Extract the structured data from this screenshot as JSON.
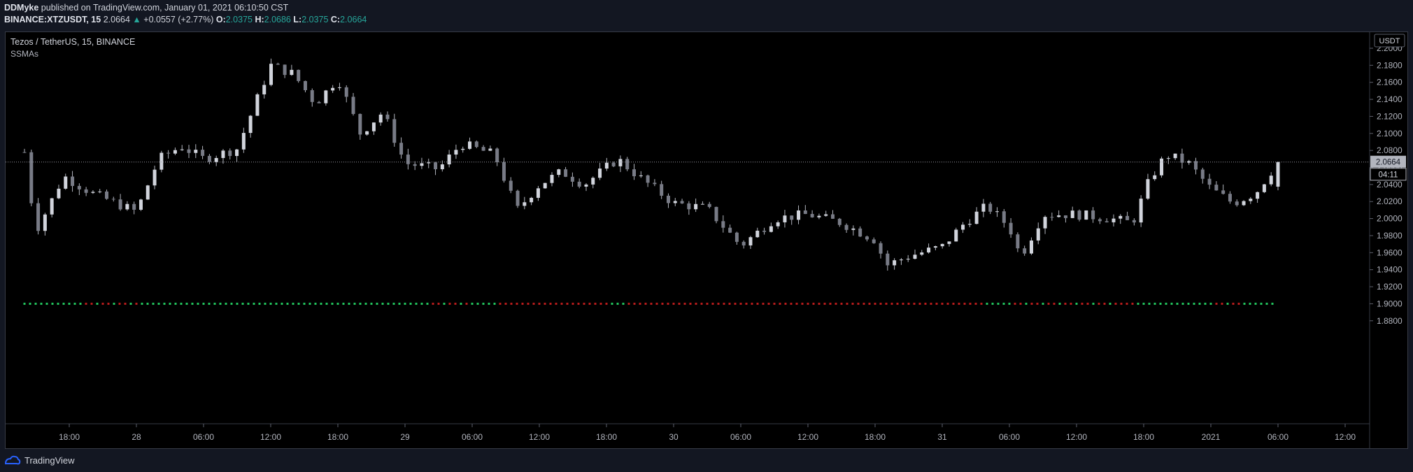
{
  "header": {
    "author": "DDMyke",
    "published_text": " published on TradingView.com, January 01, 2021 06:10:50 CST",
    "symbol_line": "BINANCE:XTZUSDT, 15",
    "last_price": "2.0664",
    "change_arrow": "▲",
    "change": "+0.0557 (+2.77%)",
    "o_label": "O:",
    "o_value": "2.0375",
    "h_label": "H:",
    "h_value": "2.0686",
    "l_label": "L:",
    "l_value": "2.0375",
    "c_label": "C:",
    "c_value": "2.0664"
  },
  "legend": {
    "title": "Tezos / TetherUS, 15, BINANCE",
    "indicator": "SSMAs"
  },
  "price_axis": {
    "currency": "USDT",
    "ticks": [
      "2.2000",
      "2.1800",
      "2.1600",
      "2.1400",
      "2.1200",
      "2.1000",
      "2.0800",
      "2.0600",
      "2.0400",
      "2.0200",
      "2.0000",
      "1.9800",
      "1.9600",
      "1.9400",
      "1.9200",
      "1.9000",
      "1.8800"
    ],
    "current_price_label": "2.0664",
    "countdown_label": "04:11"
  },
  "time_axis": {
    "ticks": [
      "18:00",
      "28",
      "06:00",
      "12:00",
      "18:00",
      "29",
      "06:00",
      "12:00",
      "18:00",
      "30",
      "06:00",
      "12:00",
      "18:00",
      "31",
      "06:00",
      "12:00",
      "18:00",
      "2021",
      "06:00",
      "12:00"
    ]
  },
  "footer": {
    "brand": "TradingView"
  },
  "colors": {
    "background": "#131722",
    "pane": "#000000",
    "candle": "#b2b5be",
    "dots_green": "#22c55e",
    "dots_red": "#b91c1c",
    "accent": "#2962ff"
  },
  "chart_data": {
    "type": "candlestick",
    "title": "Tezos / TetherUS, 15, BINANCE",
    "interval": "15",
    "ylim": [
      1.87,
      2.215
    ],
    "last_close": 2.0664,
    "bar_count": 184,
    "key_closes": [
      {
        "x": "Dec 27 14:00",
        "close": 2.078
      },
      {
        "x": "Dec 27 15:00",
        "close": 1.985
      },
      {
        "x": "Dec 27 16:00",
        "close": 2.01
      },
      {
        "x": "Dec 27 17:30",
        "close": 2.05
      },
      {
        "x": "Dec 27 20:00",
        "close": 2.03
      },
      {
        "x": "Dec 28 00:00",
        "close": 2.008
      },
      {
        "x": "Dec 28 02:00",
        "close": 2.07
      },
      {
        "x": "Dec 28 04:00",
        "close": 2.085
      },
      {
        "x": "Dec 28 06:00",
        "close": 2.07
      },
      {
        "x": "Dec 28 09:00",
        "close": 2.082
      },
      {
        "x": "Dec 28 12:00",
        "close": 2.18
      },
      {
        "x": "Dec 28 14:00",
        "close": 2.17
      },
      {
        "x": "Dec 28 16:00",
        "close": 2.135
      },
      {
        "x": "Dec 28 18:00",
        "close": 2.165
      },
      {
        "x": "Dec 28 20:00",
        "close": 2.1
      },
      {
        "x": "Dec 28 22:00",
        "close": 2.125
      },
      {
        "x": "Dec 29 00:00",
        "close": 2.065
      },
      {
        "x": "Dec 29 03:00",
        "close": 2.058
      },
      {
        "x": "Dec 29 05:00",
        "close": 2.088
      },
      {
        "x": "Dec 29 08:00",
        "close": 2.075
      },
      {
        "x": "Dec 29 10:00",
        "close": 2.01
      },
      {
        "x": "Dec 29 12:00",
        "close": 2.04
      },
      {
        "x": "Dec 29 14:00",
        "close": 2.055
      },
      {
        "x": "Dec 29 16:00",
        "close": 2.04
      },
      {
        "x": "Dec 29 19:00",
        "close": 2.07
      },
      {
        "x": "Dec 29 21:00",
        "close": 2.048
      },
      {
        "x": "Dec 30 00:00",
        "close": 2.018
      },
      {
        "x": "Dec 30 03:00",
        "close": 2.012
      },
      {
        "x": "Dec 30 06:00",
        "close": 1.968
      },
      {
        "x": "Dec 30 09:00",
        "close": 2.0
      },
      {
        "x": "Dec 30 12:00",
        "close": 2.005
      },
      {
        "x": "Dec 30 15:00",
        "close": 1.995
      },
      {
        "x": "Dec 30 18:00",
        "close": 1.975
      },
      {
        "x": "Dec 30 19:00",
        "close": 1.945
      },
      {
        "x": "Dec 30 21:00",
        "close": 1.956
      },
      {
        "x": "Dec 31 00:00",
        "close": 1.967
      },
      {
        "x": "Dec 31 02:00",
        "close": 1.995
      },
      {
        "x": "Dec 31 04:00",
        "close": 2.015
      },
      {
        "x": "Dec 31 06:00",
        "close": 1.99
      },
      {
        "x": "Dec 31 07:00",
        "close": 1.955
      },
      {
        "x": "Dec 31 09:00",
        "close": 2.005
      },
      {
        "x": "Dec 31 12:00",
        "close": 2.005
      },
      {
        "x": "Dec 31 15:00",
        "close": 2.0
      },
      {
        "x": "Dec 31 17:00",
        "close": 1.995
      },
      {
        "x": "Dec 31 18:30",
        "close": 2.045
      },
      {
        "x": "Dec 31 20:00",
        "close": 2.075
      },
      {
        "x": "Dec 31 22:00",
        "close": 2.065
      },
      {
        "x": "Jan 01 00:00",
        "close": 2.035
      },
      {
        "x": "Jan 01 02:00",
        "close": 2.018
      },
      {
        "x": "Jan 01 04:00",
        "close": 2.03
      },
      {
        "x": "Jan 01 06:00",
        "close": 2.0664
      }
    ],
    "dot_line": {
      "price": 1.9,
      "segments": [
        {
          "color": "green",
          "from": "Dec 27 14:00",
          "to": "Dec 27 19:00"
        },
        {
          "color": "mixed",
          "from": "Dec 27 19:00",
          "to": "Dec 28 00:30"
        },
        {
          "color": "green",
          "from": "Dec 28 00:30",
          "to": "Dec 29 02:00"
        },
        {
          "color": "mixed",
          "from": "Dec 29 02:00",
          "to": "Dec 29 06:00"
        },
        {
          "color": "green",
          "from": "Dec 29 06:00",
          "to": "Dec 29 08:30"
        },
        {
          "color": "red",
          "from": "Dec 29 08:30",
          "to": "Dec 29 18:30"
        },
        {
          "color": "green",
          "from": "Dec 29 18:30",
          "to": "Dec 29 20:00"
        },
        {
          "color": "red",
          "from": "Dec 29 20:00",
          "to": "Dec 31 04:00"
        },
        {
          "color": "green",
          "from": "Dec 31 04:00",
          "to": "Dec 31 06:00"
        },
        {
          "color": "mixed",
          "from": "Dec 31 06:00",
          "to": "Dec 31 16:00"
        },
        {
          "color": "red",
          "from": "Dec 31 16:00",
          "to": "Dec 31 17:30"
        },
        {
          "color": "green",
          "from": "Dec 31 17:30",
          "to": "Jan 01 00:00"
        },
        {
          "color": "mixed",
          "from": "Jan 01 00:00",
          "to": "Jan 01 03:00"
        },
        {
          "color": "green",
          "from": "Jan 01 03:00",
          "to": "Jan 01 06:00"
        }
      ]
    }
  }
}
